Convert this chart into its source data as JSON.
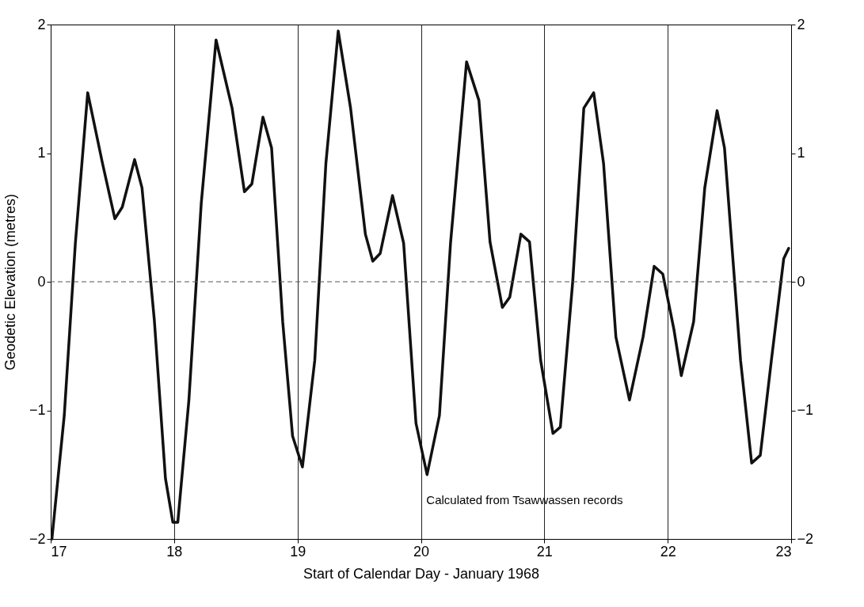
{
  "chart_data": {
    "type": "line",
    "xlabel": "Start of Calendar Day - January 1968",
    "ylabel": "Geodetic Elevation (metres)",
    "annotations": [
      "Calculated from Tsawwassen records"
    ],
    "xlim": [
      17,
      23
    ],
    "xticks": [
      17,
      18,
      19,
      20,
      21,
      22,
      23
    ],
    "ylim": [
      -2,
      2
    ],
    "yticks": [
      -2,
      -1,
      0,
      1,
      2
    ],
    "y2lim": [
      -2,
      2
    ],
    "y2ticks": [
      -2,
      -1,
      0,
      1,
      2
    ],
    "grid": "x",
    "marker": "none",
    "line_style": "solid",
    "ref_lines": [
      {
        "axis": "y",
        "value": 0,
        "color": "#555555",
        "line_style": "dashed"
      }
    ],
    "series": [
      {
        "color": "#111111",
        "x": [
          17.01,
          17.11,
          17.2,
          17.3,
          17.42,
          17.52,
          17.58,
          17.68,
          17.74,
          17.84,
          17.93,
          17.99,
          18.03,
          18.12,
          18.22,
          18.34,
          18.47,
          18.57,
          18.63,
          18.72,
          18.79,
          18.88,
          18.96,
          19.04,
          19.14,
          19.23,
          19.33,
          19.43,
          19.55,
          19.61,
          19.67,
          19.77,
          19.86,
          19.96,
          20.05,
          20.15,
          20.24,
          20.37,
          20.47,
          20.56,
          20.66,
          20.72,
          20.81,
          20.88,
          20.97,
          21.07,
          21.13,
          21.23,
          21.32,
          21.4,
          21.48,
          21.58,
          21.69,
          21.8,
          21.89,
          21.96,
          22.05,
          22.11,
          22.21,
          22.3,
          22.4,
          22.46,
          22.59,
          22.68,
          22.75,
          22.84,
          22.94,
          22.98
        ],
        "values": [
          -2.0,
          -1.04,
          0.3,
          1.47,
          0.92,
          0.49,
          0.58,
          0.95,
          0.73,
          -0.3,
          -1.53,
          -1.87,
          -1.87,
          -0.92,
          0.61,
          1.88,
          1.35,
          0.7,
          0.76,
          1.28,
          1.04,
          -0.31,
          -1.2,
          -1.44,
          -0.61,
          0.92,
          1.95,
          1.35,
          0.37,
          0.16,
          0.22,
          0.67,
          0.3,
          -1.1,
          -1.5,
          -1.04,
          0.3,
          1.71,
          1.41,
          0.31,
          -0.2,
          -0.12,
          0.37,
          0.31,
          -0.61,
          -1.18,
          -1.13,
          0.0,
          1.35,
          1.47,
          0.92,
          -0.43,
          -0.92,
          -0.43,
          0.12,
          0.06,
          -0.37,
          -0.73,
          -0.31,
          0.73,
          1.33,
          1.04,
          -0.61,
          -1.41,
          -1.35,
          -0.61,
          0.18,
          0.26
        ]
      }
    ]
  }
}
